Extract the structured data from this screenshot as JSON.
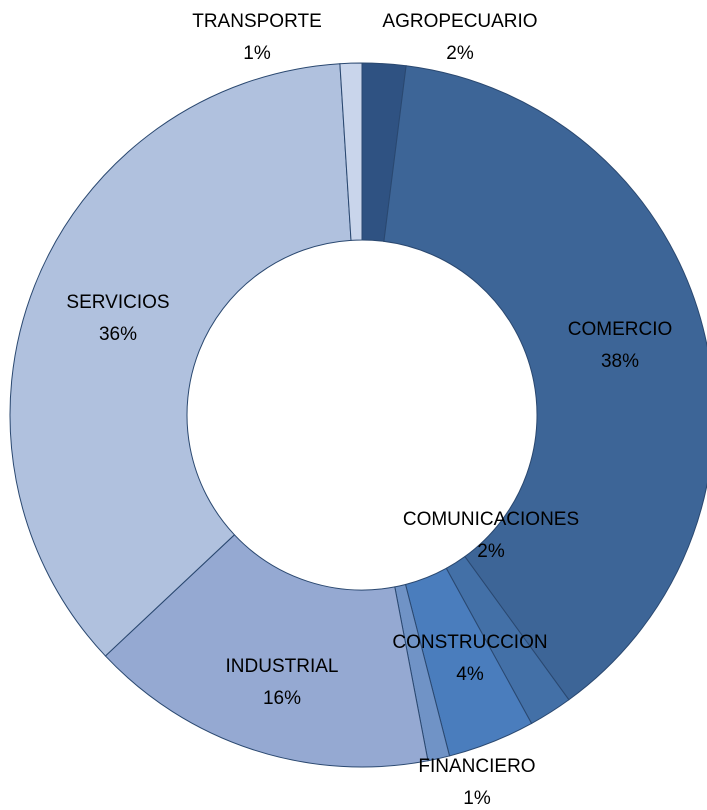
{
  "chart_data": {
    "type": "donut",
    "categories": [
      "AGROPECUARIO",
      "COMERCIO",
      "COMUNICACIONES",
      "CONSTRUCCION",
      "FINANCIERO",
      "INDUSTRIAL",
      "SERVICIOS",
      "TRANSPORTE"
    ],
    "values": [
      2,
      38,
      2,
      4,
      1,
      16,
      36,
      1
    ],
    "value_labels": [
      "2%",
      "38%",
      "2%",
      "4%",
      "1%",
      "16%",
      "36%",
      "1%"
    ],
    "colors": [
      "#2f5282",
      "#3d6597",
      "#4370a7",
      "#4a7dbd",
      "#7093c6",
      "#95a9d2",
      "#b0c1de",
      "#c9d5eb"
    ]
  }
}
